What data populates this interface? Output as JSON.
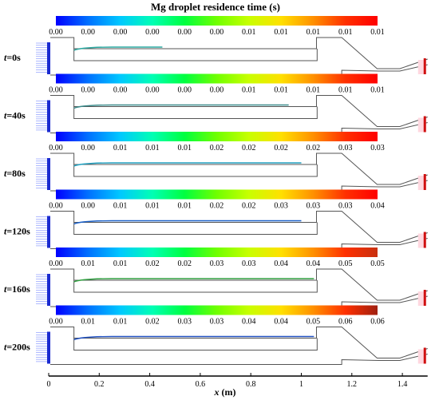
{
  "title": "Mg droplet residence time (s)",
  "colormap": [
    "#0000ff",
    "#0070ff",
    "#00c8ff",
    "#00ffb4",
    "#00ff40",
    "#70ff00",
    "#c8ff00",
    "#ffe000",
    "#ff9000",
    "#ff3000",
    "#ff0000"
  ],
  "panels": [
    {
      "time_label": "t=0s",
      "colorbar_ticks": [
        "0.00",
        "0.00",
        "0.00",
        "0.00",
        "0.00",
        "0.00",
        "0.01",
        "0.01",
        "0.01",
        "0.01",
        "0.01"
      ],
      "bar_end_color": "#ff0000",
      "particle_extent_m": 0.45,
      "particle_color": "#2aa8a0"
    },
    {
      "time_label": "t=40s",
      "colorbar_ticks": [
        "0.00",
        "0.00",
        "0.00",
        "0.00",
        "0.00",
        "0.00",
        "0.01",
        "0.01",
        "0.01",
        "0.01",
        "0.01"
      ],
      "bar_end_color": "#ff0000",
      "particle_extent_m": 0.95,
      "particle_color": "#3a8a8a"
    },
    {
      "time_label": "t=80s",
      "colorbar_ticks": [
        "0.00",
        "0.00",
        "0.01",
        "0.01",
        "0.01",
        "0.02",
        "0.02",
        "0.02",
        "0.02",
        "0.03",
        "0.03"
      ],
      "bar_end_color": "#ff0000",
      "particle_extent_m": 1.0,
      "particle_color": "#20a0c0"
    },
    {
      "time_label": "t=120s",
      "colorbar_ticks": [
        "0.00",
        "0.00",
        "0.01",
        "0.01",
        "0.01",
        "0.02",
        "0.02",
        "0.03",
        "0.03",
        "0.03",
        "0.04"
      ],
      "bar_end_color": "#ff0000",
      "particle_extent_m": 1.0,
      "particle_color": "#1a60c8"
    },
    {
      "time_label": "t=160s",
      "colorbar_ticks": [
        "0.00",
        "0.01",
        "0.01",
        "0.02",
        "0.02",
        "0.03",
        "0.03",
        "0.04",
        "0.04",
        "0.05",
        "0.05"
      ],
      "bar_end_color": "#c83010",
      "particle_extent_m": 1.05,
      "particle_color": "#30a040"
    },
    {
      "time_label": "t=200s",
      "colorbar_ticks": [
        "0.00",
        "0.01",
        "0.01",
        "0.02",
        "0.03",
        "0.03",
        "0.04",
        "0.04",
        "0.05",
        "0.06",
        "0.06"
      ],
      "bar_end_color": "#a02010",
      "particle_extent_m": 1.05,
      "particle_color": "#2050c0"
    }
  ],
  "x_axis": {
    "label_var": "x",
    "label_unit": " (m)",
    "ticks": [
      "0",
      "0.2",
      "0.4",
      "0.6",
      "0.8",
      "1",
      "1.2",
      "1.4"
    ],
    "range": [
      0,
      1.5
    ]
  }
}
